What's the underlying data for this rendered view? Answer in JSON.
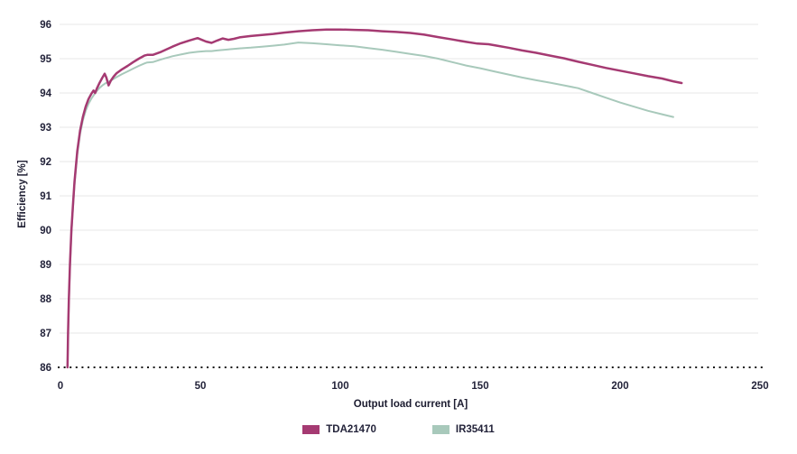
{
  "chart_data": {
    "type": "line",
    "title": "",
    "xlabel": "Output load current [A]",
    "ylabel": "Efficiency [%]",
    "xlim": [
      0,
      250
    ],
    "ylim": [
      86,
      96
    ],
    "xticks": [
      0,
      50,
      100,
      150,
      200,
      250
    ],
    "yticks": [
      86,
      87,
      88,
      89,
      90,
      91,
      92,
      93,
      94,
      95,
      96
    ],
    "grid": "horizontal-light",
    "legend_position": "bottom-center",
    "baseline": {
      "value": 86,
      "style": "dotted",
      "color": "#1a1a1a"
    },
    "colors": {
      "grid": "#e7e7e7",
      "tick_text": "#23233a",
      "axis_title_text": "#1c1c30",
      "background": "#ffffff"
    },
    "series": [
      {
        "name": "TDA21470",
        "color": "#a53a72",
        "width": 2.5,
        "points": [
          [
            2.5,
            86.0
          ],
          [
            2.7,
            87.0
          ],
          [
            3.0,
            88.0
          ],
          [
            3.4,
            89.0
          ],
          [
            3.9,
            90.0
          ],
          [
            4.5,
            90.8
          ],
          [
            5,
            91.4
          ],
          [
            6,
            92.3
          ],
          [
            7,
            92.9
          ],
          [
            8,
            93.3
          ],
          [
            9,
            93.6
          ],
          [
            10,
            93.82
          ],
          [
            11,
            93.97
          ],
          [
            11.8,
            94.07
          ],
          [
            12.4,
            94.0
          ],
          [
            13,
            94.13
          ],
          [
            14,
            94.3
          ],
          [
            15,
            94.45
          ],
          [
            15.8,
            94.56
          ],
          [
            16.4,
            94.45
          ],
          [
            17.2,
            94.22
          ],
          [
            18,
            94.36
          ],
          [
            19,
            94.48
          ],
          [
            20,
            94.57
          ],
          [
            22,
            94.69
          ],
          [
            24,
            94.79
          ],
          [
            26,
            94.9
          ],
          [
            28,
            95.0
          ],
          [
            30,
            95.09
          ],
          [
            31,
            95.11
          ],
          [
            33,
            95.11
          ],
          [
            36,
            95.2
          ],
          [
            40,
            95.35
          ],
          [
            43,
            95.45
          ],
          [
            46,
            95.53
          ],
          [
            49,
            95.6
          ],
          [
            52,
            95.5
          ],
          [
            54,
            95.46
          ],
          [
            56,
            95.53
          ],
          [
            58,
            95.59
          ],
          [
            60,
            95.55
          ],
          [
            62,
            95.58
          ],
          [
            64,
            95.62
          ],
          [
            68,
            95.66
          ],
          [
            72,
            95.69
          ],
          [
            76,
            95.72
          ],
          [
            80,
            95.76
          ],
          [
            85,
            95.8
          ],
          [
            90,
            95.83
          ],
          [
            95,
            95.85
          ],
          [
            100,
            95.85
          ],
          [
            105,
            95.84
          ],
          [
            110,
            95.83
          ],
          [
            115,
            95.8
          ],
          [
            120,
            95.78
          ],
          [
            125,
            95.75
          ],
          [
            130,
            95.7
          ],
          [
            135,
            95.63
          ],
          [
            140,
            95.56
          ],
          [
            145,
            95.49
          ],
          [
            149,
            95.44
          ],
          [
            153,
            95.42
          ],
          [
            156,
            95.38
          ],
          [
            160,
            95.32
          ],
          [
            165,
            95.24
          ],
          [
            170,
            95.17
          ],
          [
            175,
            95.09
          ],
          [
            180,
            95.01
          ],
          [
            185,
            94.91
          ],
          [
            190,
            94.82
          ],
          [
            195,
            94.73
          ],
          [
            200,
            94.65
          ],
          [
            205,
            94.57
          ],
          [
            210,
            94.49
          ],
          [
            215,
            94.42
          ],
          [
            219,
            94.34
          ],
          [
            222,
            94.29
          ]
        ]
      },
      {
        "name": "IR35411",
        "color": "#a8c9bb",
        "width": 2,
        "points": [
          [
            2.5,
            86.0
          ],
          [
            2.7,
            86.9
          ],
          [
            3.0,
            87.9
          ],
          [
            3.4,
            88.9
          ],
          [
            3.9,
            89.9
          ],
          [
            4.5,
            90.7
          ],
          [
            5,
            91.3
          ],
          [
            6,
            92.2
          ],
          [
            7,
            92.8
          ],
          [
            8,
            93.2
          ],
          [
            9,
            93.48
          ],
          [
            10,
            93.68
          ],
          [
            11,
            93.83
          ],
          [
            12,
            93.95
          ],
          [
            13,
            94.06
          ],
          [
            14,
            94.15
          ],
          [
            15,
            94.22
          ],
          [
            16,
            94.28
          ],
          [
            17,
            94.32
          ],
          [
            18,
            94.36
          ],
          [
            19,
            94.41
          ],
          [
            20,
            94.46
          ],
          [
            22,
            94.55
          ],
          [
            24,
            94.63
          ],
          [
            26,
            94.71
          ],
          [
            28,
            94.79
          ],
          [
            30,
            94.86
          ],
          [
            31,
            94.89
          ],
          [
            33,
            94.9
          ],
          [
            36,
            94.98
          ],
          [
            40,
            95.07
          ],
          [
            43,
            95.12
          ],
          [
            46,
            95.17
          ],
          [
            49,
            95.2
          ],
          [
            52,
            95.22
          ],
          [
            54,
            95.22
          ],
          [
            56,
            95.24
          ],
          [
            60,
            95.27
          ],
          [
            64,
            95.3
          ],
          [
            68,
            95.32
          ],
          [
            72,
            95.35
          ],
          [
            76,
            95.38
          ],
          [
            80,
            95.41
          ],
          [
            85,
            95.47
          ],
          [
            90,
            95.45
          ],
          [
            95,
            95.42
          ],
          [
            100,
            95.39
          ],
          [
            105,
            95.36
          ],
          [
            110,
            95.31
          ],
          [
            115,
            95.26
          ],
          [
            120,
            95.2
          ],
          [
            125,
            95.14
          ],
          [
            130,
            95.08
          ],
          [
            135,
            95.0
          ],
          [
            140,
            94.9
          ],
          [
            145,
            94.8
          ],
          [
            150,
            94.72
          ],
          [
            155,
            94.63
          ],
          [
            160,
            94.54
          ],
          [
            165,
            94.45
          ],
          [
            170,
            94.37
          ],
          [
            175,
            94.3
          ],
          [
            180,
            94.22
          ],
          [
            185,
            94.14
          ],
          [
            190,
            94.0
          ],
          [
            195,
            93.86
          ],
          [
            200,
            93.72
          ],
          [
            205,
            93.6
          ],
          [
            210,
            93.48
          ],
          [
            215,
            93.38
          ],
          [
            219,
            93.3
          ]
        ]
      }
    ]
  }
}
